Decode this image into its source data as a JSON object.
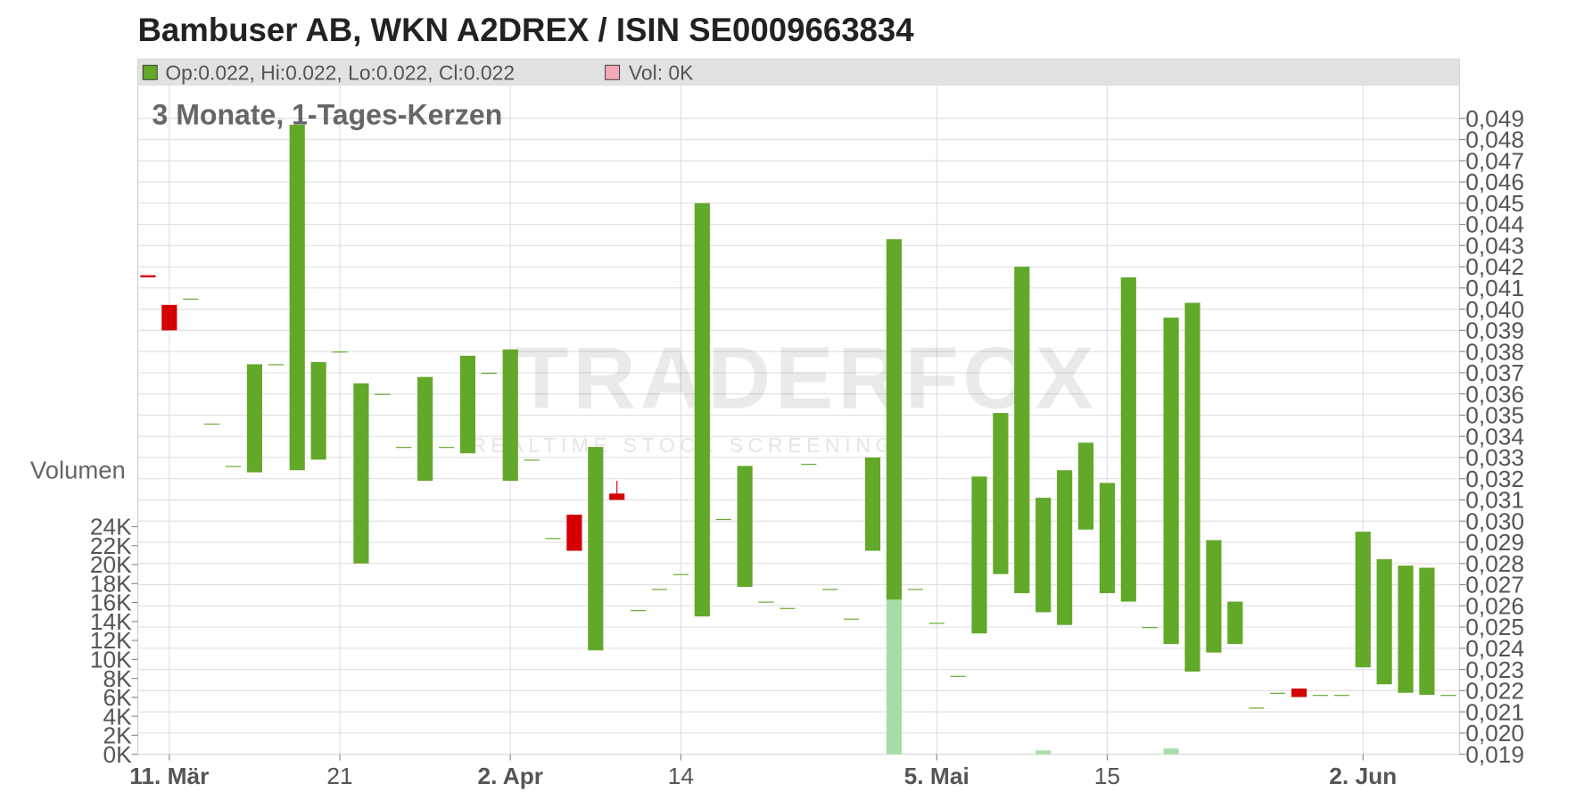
{
  "chart_data": {
    "type": "candlestick",
    "title": "Bambuser AB, WKN A2DREX / ISIN SE0009663834",
    "subtitle": "3 Monate, 1-Tages-Kerzen",
    "legend_price": "Op:0.022, Hi:0.022, Lo:0.022, Cl:0.022",
    "legend_volume": "Vol: 0K",
    "volume_axis_label": "Volumen",
    "watermark": "TRADERFOX",
    "watermark_sub": "REALTIME STOCK SCREENING",
    "up_color": "#62a829",
    "down_color": "#d40000",
    "volume_up_color": "#a8dcaa",
    "volume_down_color": "#f2a9b9",
    "grid": true,
    "open": [
      0.0416,
      0.0402,
      0.0405,
      0.0346,
      0.0326,
      0.0323,
      0.0374,
      0.0324,
      0.0329,
      0.038,
      0.028,
      0.036,
      0.0335,
      0.0319,
      0.0335,
      0.0332,
      0.037,
      0.0319,
      0.0329,
      0.0292,
      0.0303,
      0.0239,
      0.0313,
      0.0258,
      0.0268,
      0.0275,
      0.0255,
      0.0301,
      0.0269,
      0.0262,
      0.0259,
      0.0327,
      0.0268,
      0.0254,
      0.0286,
      0.0263,
      0.0268,
      0.0252,
      0.0227,
      0.0247,
      0.0275,
      0.0266,
      0.0257,
      0.0251,
      0.0296,
      0.0266,
      0.0262,
      0.025,
      0.0242,
      0.0229,
      0.0238,
      0.0242,
      0.0212,
      0.0219,
      0.0221,
      0.0218,
      0.0218,
      0.0231,
      0.0223,
      0.0219,
      0.0218,
      0.0218
    ],
    "high": [
      0.0416,
      0.0402,
      0.0405,
      0.0346,
      0.0326,
      0.0374,
      0.0374,
      0.0487,
      0.0375,
      0.038,
      0.0365,
      0.036,
      0.0335,
      0.0368,
      0.0335,
      0.0378,
      0.037,
      0.0381,
      0.0329,
      0.0292,
      0.0303,
      0.0335,
      0.0319,
      0.0258,
      0.0268,
      0.0275,
      0.045,
      0.0301,
      0.0326,
      0.0262,
      0.0259,
      0.0327,
      0.0268,
      0.0254,
      0.033,
      0.0433,
      0.0268,
      0.0252,
      0.0227,
      0.0321,
      0.0351,
      0.042,
      0.0311,
      0.0324,
      0.0337,
      0.0318,
      0.0415,
      0.025,
      0.0396,
      0.0403,
      0.0291,
      0.0262,
      0.0212,
      0.0219,
      0.0221,
      0.0218,
      0.0218,
      0.0295,
      0.0282,
      0.0279,
      0.0278,
      0.0218
    ],
    "low": [
      0.0415,
      0.039,
      0.0405,
      0.0346,
      0.0326,
      0.0323,
      0.0374,
      0.0324,
      0.0329,
      0.038,
      0.028,
      0.036,
      0.0335,
      0.0319,
      0.0335,
      0.0332,
      0.037,
      0.0319,
      0.0329,
      0.0292,
      0.0286,
      0.0239,
      0.031,
      0.0258,
      0.0268,
      0.0275,
      0.0255,
      0.0301,
      0.0269,
      0.0262,
      0.0259,
      0.0327,
      0.0268,
      0.0254,
      0.0286,
      0.0263,
      0.0268,
      0.0252,
      0.0227,
      0.0247,
      0.0275,
      0.0266,
      0.0257,
      0.0251,
      0.0296,
      0.0266,
      0.0262,
      0.025,
      0.0242,
      0.0229,
      0.0238,
      0.0242,
      0.0212,
      0.0219,
      0.0217,
      0.0218,
      0.0218,
      0.0231,
      0.0223,
      0.0219,
      0.0218,
      0.0218
    ],
    "close": [
      0.0415,
      0.039,
      0.0405,
      0.0346,
      0.0326,
      0.0374,
      0.0374,
      0.0487,
      0.0375,
      0.038,
      0.0365,
      0.036,
      0.0335,
      0.0368,
      0.0335,
      0.0378,
      0.037,
      0.0381,
      0.0329,
      0.0292,
      0.0286,
      0.0335,
      0.031,
      0.0258,
      0.0268,
      0.0275,
      0.045,
      0.0301,
      0.0326,
      0.0262,
      0.0259,
      0.0327,
      0.0268,
      0.0254,
      0.033,
      0.0433,
      0.0268,
      0.0252,
      0.0227,
      0.0321,
      0.0351,
      0.042,
      0.0311,
      0.0324,
      0.0337,
      0.0318,
      0.0415,
      0.025,
      0.0396,
      0.0403,
      0.0291,
      0.0262,
      0.0212,
      0.0219,
      0.0217,
      0.0218,
      0.0218,
      0.0295,
      0.0282,
      0.0279,
      0.0278,
      0.0218
    ],
    "volume": [
      0,
      0,
      0,
      0,
      0,
      0,
      0,
      0,
      0,
      0,
      0,
      0,
      0,
      0,
      0,
      0,
      0,
      0,
      0,
      0,
      0,
      0,
      0,
      0,
      0,
      0,
      0,
      0,
      0,
      0,
      0,
      0,
      0,
      0,
      0,
      16500,
      0,
      0,
      0,
      0,
      0,
      0,
      400,
      0,
      0,
      0,
      0,
      0,
      600,
      0,
      0,
      0,
      0,
      0,
      0,
      0,
      0,
      0,
      0,
      0,
      0,
      0
    ],
    "xticks": [
      {
        "value": 1,
        "label": "11. Mär"
      },
      {
        "value": 9,
        "label": "21"
      },
      {
        "value": 17,
        "label": "2. Apr"
      },
      {
        "value": 25,
        "label": "14"
      },
      {
        "value": 37,
        "label": "5. Mai"
      },
      {
        "value": 45,
        "label": "15"
      },
      {
        "value": 57,
        "label": "2. Jun"
      }
    ],
    "ylim": [
      0.019,
      0.049
    ],
    "yticks": [
      {
        "value": 0.019,
        "label": "0,019"
      },
      {
        "value": 0.02,
        "label": "0,020"
      },
      {
        "value": 0.021,
        "label": "0,021"
      },
      {
        "value": 0.022,
        "label": "0,022"
      },
      {
        "value": 0.023,
        "label": "0,023"
      },
      {
        "value": 0.024,
        "label": "0,024"
      },
      {
        "value": 0.025,
        "label": "0,025"
      },
      {
        "value": 0.026,
        "label": "0,026"
      },
      {
        "value": 0.027,
        "label": "0,027"
      },
      {
        "value": 0.028,
        "label": "0,028"
      },
      {
        "value": 0.029,
        "label": "0,029"
      },
      {
        "value": 0.03,
        "label": "0,030"
      },
      {
        "value": 0.031,
        "label": "0,031"
      },
      {
        "value": 0.032,
        "label": "0,032"
      },
      {
        "value": 0.033,
        "label": "0,033"
      },
      {
        "value": 0.034,
        "label": "0,034"
      },
      {
        "value": 0.035,
        "label": "0,035"
      },
      {
        "value": 0.036,
        "label": "0,036"
      },
      {
        "value": 0.037,
        "label": "0,037"
      },
      {
        "value": 0.038,
        "label": "0,038"
      },
      {
        "value": 0.039,
        "label": "0,039"
      },
      {
        "value": 0.04,
        "label": "0,040"
      },
      {
        "value": 0.041,
        "label": "0,041"
      },
      {
        "value": 0.042,
        "label": "0,042"
      },
      {
        "value": 0.043,
        "label": "0,043"
      },
      {
        "value": 0.044,
        "label": "0,044"
      },
      {
        "value": 0.045,
        "label": "0,045"
      },
      {
        "value": 0.046,
        "label": "0,046"
      },
      {
        "value": 0.047,
        "label": "0,047"
      },
      {
        "value": 0.048,
        "label": "0,048"
      },
      {
        "value": 0.049,
        "label": "0,049"
      }
    ],
    "y2lim": [
      0,
      24000
    ],
    "y2ticks": [
      {
        "value": 0,
        "label": "0K"
      },
      {
        "value": 2000,
        "label": "2K"
      },
      {
        "value": 4000,
        "label": "4K"
      },
      {
        "value": 6000,
        "label": "6K"
      },
      {
        "value": 8000,
        "label": "8K"
      },
      {
        "value": 10000,
        "label": "10K"
      },
      {
        "value": 12000,
        "label": "12K"
      },
      {
        "value": 14000,
        "label": "14K"
      },
      {
        "value": 16000,
        "label": "16K"
      },
      {
        "value": 18000,
        "label": "18K"
      },
      {
        "value": 20000,
        "label": "20K"
      },
      {
        "value": 22000,
        "label": "22K"
      },
      {
        "value": 24000,
        "label": "24K"
      }
    ]
  }
}
